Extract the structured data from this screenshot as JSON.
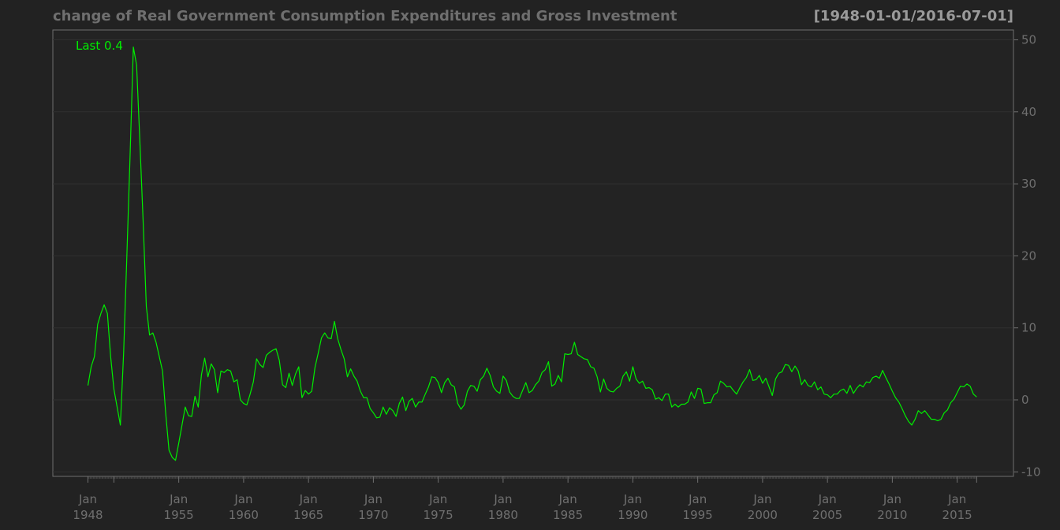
{
  "chart_data": {
    "type": "line",
    "title": "change of Real Government Consumption Expenditures and Gross Investment",
    "date_range": "[1948-01-01/2016-07-01]",
    "last_label": "Last 0.4",
    "ylim": [
      -10,
      50
    ],
    "y_ticks": [
      "-10",
      "0",
      "10",
      "20",
      "30",
      "40",
      "50"
    ],
    "x_tick_years": [
      1948,
      1955,
      1960,
      1965,
      1970,
      1975,
      1980,
      1985,
      1990,
      1995,
      2000,
      2005,
      2010,
      2015
    ],
    "x_tick_labels": [
      {
        "month": "Jan",
        "year": "1948"
      },
      {
        "month": "Jan",
        "year": "1955"
      },
      {
        "month": "Jan",
        "year": "1960"
      },
      {
        "month": "Jan",
        "year": "1965"
      },
      {
        "month": "Jan",
        "year": "1970"
      },
      {
        "month": "Jan",
        "year": "1975"
      },
      {
        "month": "Jan",
        "year": "1980"
      },
      {
        "month": "Jan",
        "year": "1985"
      },
      {
        "month": "Jan",
        "year": "1990"
      },
      {
        "month": "Jan",
        "year": "1995"
      },
      {
        "month": "Jan",
        "year": "2000"
      },
      {
        "month": "Jan",
        "year": "2005"
      },
      {
        "month": "Jan",
        "year": "2010"
      },
      {
        "month": "Jan",
        "year": "2015"
      }
    ],
    "grid": true,
    "colors": {
      "background": "#222222",
      "plot_background": "#232323",
      "line": "#00ee00",
      "axis": "#6f6f6f",
      "grid": "#303030"
    },
    "series": [
      {
        "x_start": "1948-01-01",
        "frequency": "quarterly",
        "values": [
          2,
          4.6,
          6,
          10.5,
          12,
          13.2,
          12,
          6,
          1.5,
          -1,
          -3.5,
          6.5,
          20,
          34,
          49,
          46.5,
          36,
          25,
          13,
          9,
          9.3,
          8,
          6,
          4,
          -2,
          -7,
          -8,
          -8.4,
          -6,
          -3.5,
          -1,
          -2.2,
          -2.3,
          0.5,
          -1,
          3.5,
          5.8,
          3.2,
          5,
          4.2,
          1,
          4,
          3.8,
          4.2,
          4,
          2.5,
          2.8,
          0,
          -0.5,
          -0.7,
          0.8,
          2.5,
          5.7,
          4.9,
          4.5,
          6.2,
          6.6,
          6.9,
          7.1,
          5.5,
          2.1,
          1.7,
          3.7,
          2,
          3.6,
          4.6,
          0.3,
          1.3,
          0.8,
          1.2,
          4.5,
          6.5,
          8.6,
          9.3,
          8.6,
          8.5,
          10.9,
          8.5,
          7,
          5.7,
          3.2,
          4.3,
          3.3,
          2.6,
          1.2,
          0.3,
          0.3,
          -1.2,
          -1.8,
          -2.5,
          -2.4,
          -1,
          -2,
          -1.1,
          -1.5,
          -2.3,
          -0.5,
          0.4,
          -1.5,
          -0.2,
          0.2,
          -1,
          -0.3,
          -0.3,
          0.8,
          1.8,
          3.2,
          3.1,
          2.4,
          1,
          2.4,
          3,
          2.1,
          1.8,
          -0.5,
          -1.3,
          -0.7,
          1.2,
          2,
          1.9,
          1.2,
          2.8,
          3.3,
          4.4,
          3.4,
          1.8,
          1.2,
          0.9,
          3.3,
          2.7,
          1.1,
          0.5,
          0.2,
          0.2,
          1.3,
          2.4,
          1,
          1.3,
          2.1,
          2.6,
          3.8,
          4.2,
          5.3,
          1.9,
          2.2,
          3.4,
          2.5,
          6.4,
          6.3,
          6.4,
          8,
          6.3,
          6,
          5.7,
          5.6,
          4.6,
          4.4,
          3.2,
          1.1,
          2.9,
          1.6,
          1.2,
          1.1,
          1.6,
          1.9,
          3.3,
          3.9,
          2.6,
          4.6,
          2.9,
          2.3,
          2.6,
          1.6,
          1.7,
          1.4,
          0.1,
          0.3,
          -0.1,
          0.8,
          0.8,
          -1,
          -0.6,
          -1,
          -0.6,
          -0.6,
          -0.3,
          1.1,
          0.2,
          1.6,
          1.5,
          -0.5,
          -0.4,
          -0.4,
          0.7,
          1,
          2.6,
          2.3,
          1.8,
          1.9,
          1.3,
          0.8,
          1.7,
          2.5,
          3.1,
          4.2,
          2.7,
          2.8,
          3.4,
          2.3,
          3,
          1.8,
          0.6,
          2.9,
          3.7,
          3.9,
          4.9,
          4.8,
          3.9,
          4.7,
          4,
          2.1,
          2.8,
          2,
          1.8,
          2.5,
          1.4,
          1.8,
          0.8,
          0.7,
          0.3,
          0.8,
          0.8,
          1.3,
          1.5,
          0.9,
          2,
          0.9,
          1.6,
          2.1,
          1.8,
          2.5,
          2.4,
          3.1,
          3.3,
          3,
          4.1,
          3.1,
          2.2,
          1.2,
          0.3,
          -0.3,
          -1.2,
          -2.2,
          -3,
          -3.5,
          -2.7,
          -1.5,
          -1.9,
          -1.5,
          -2.1,
          -2.7,
          -2.7,
          -2.9,
          -2.7,
          -1.8,
          -1.4,
          -0.4,
          0.1,
          1,
          1.9,
          1.8,
          2.2,
          1.9,
          0.8,
          0.4
        ]
      }
    ]
  }
}
